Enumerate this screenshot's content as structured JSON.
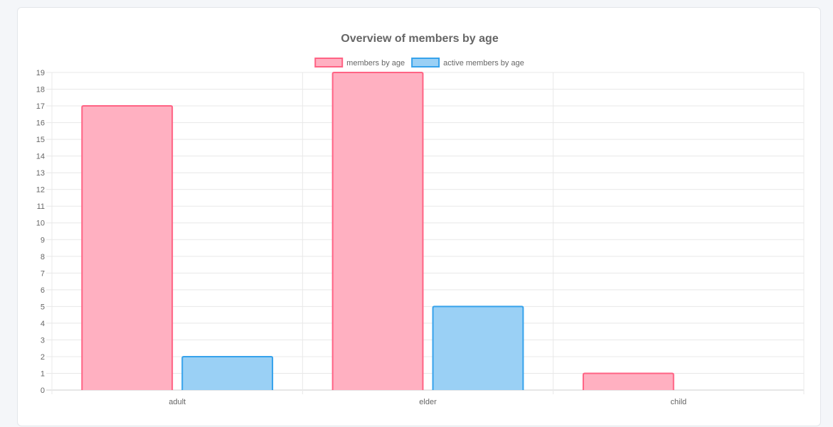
{
  "chart_data": {
    "type": "bar",
    "title": "Overview of members by age",
    "categories": [
      "adult",
      "elder",
      "child"
    ],
    "series": [
      {
        "name": "members by age",
        "values": [
          17,
          19,
          1
        ],
        "fill": "#ffb0c1",
        "stroke": "#ff6384"
      },
      {
        "name": "active members by age",
        "values": [
          2,
          5,
          0
        ],
        "fill": "#9ad0f5",
        "stroke": "#36a2eb"
      }
    ],
    "ylim": [
      0,
      19
    ],
    "ytick_step": 1,
    "grid": true,
    "legend_position": "top"
  }
}
